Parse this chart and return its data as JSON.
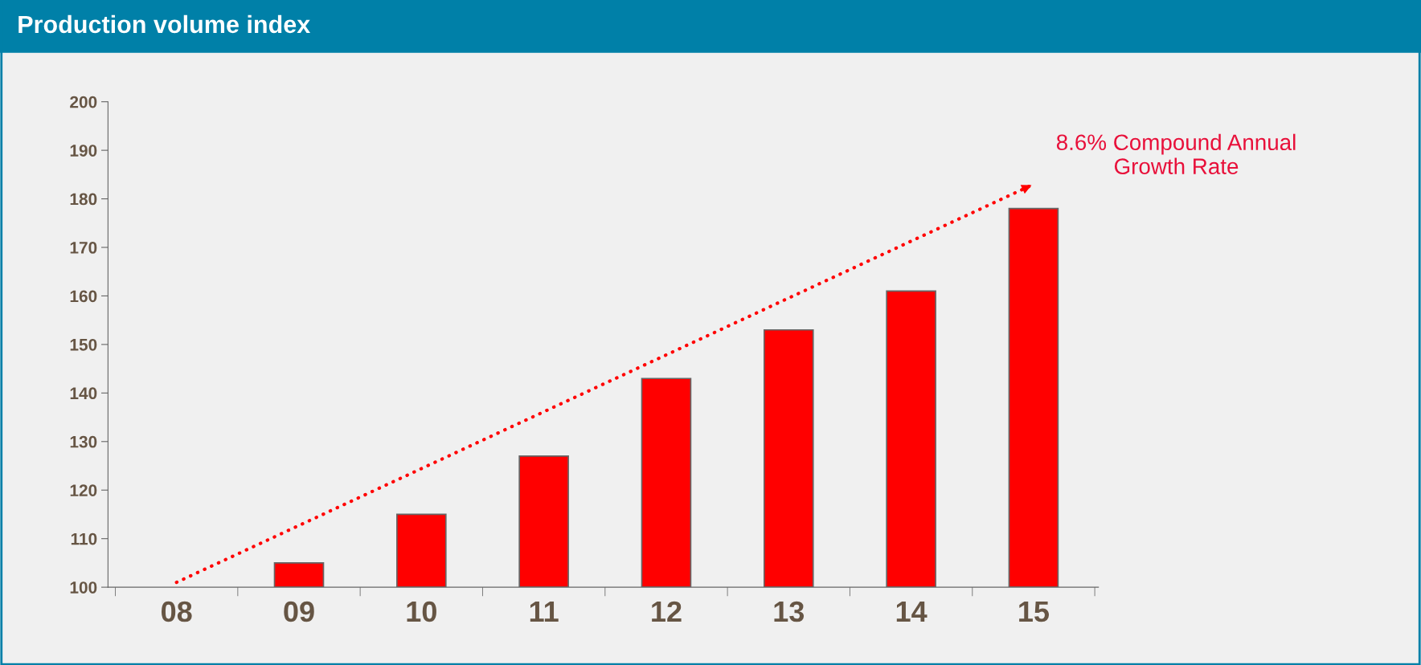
{
  "chart_data": {
    "type": "bar",
    "title": "Production volume index",
    "categories": [
      "08",
      "09",
      "10",
      "11",
      "12",
      "13",
      "14",
      "15"
    ],
    "series": [
      {
        "color": "#ff0000",
        "values": [
          null,
          105,
          115,
          127,
          143,
          153,
          161,
          178
        ]
      },
      {
        "type": "line",
        "color": "#ff0000",
        "x": [
          "08",
          "15"
        ],
        "values": [
          101,
          183
        ],
        "line_style": "dotted",
        "marker": "none"
      }
    ],
    "ylim": [
      100,
      200
    ],
    "yticks": [
      100,
      110,
      120,
      130,
      140,
      150,
      160,
      170,
      180,
      190,
      200
    ],
    "annotations": [
      {
        "text": "8.6% Compound Annual\nGrowth Rate",
        "x": "15",
        "y": 183
      }
    ],
    "grid": false,
    "legend": false
  }
}
